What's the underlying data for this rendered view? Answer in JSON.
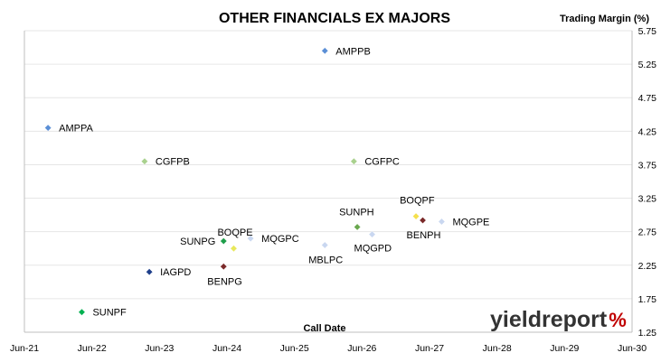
{
  "chart_data": {
    "type": "scatter",
    "title": "OTHER FINANCIALS EX MAJORS",
    "ylabel": "Trading Margin (%)",
    "xlabel": "Call Date",
    "x_ticks": [
      "Jun-21",
      "Jun-22",
      "Jun-23",
      "Jun-24",
      "Jun-25",
      "Jun-26",
      "Jun-27",
      "Jun-28",
      "Jun-29",
      "Jun-30"
    ],
    "y_ticks": [
      "1.25",
      "1.75",
      "2.25",
      "2.75",
      "3.25",
      "3.75",
      "4.25",
      "4.75",
      "5.25",
      "5.75"
    ],
    "xlim": [
      2021.5,
      2030.5
    ],
    "ylim": [
      1.25,
      5.75
    ],
    "y_axis_position": "right",
    "grid": "horizontal",
    "points": [
      {
        "name": "AMPPB",
        "x": 2025.95,
        "y": 5.45,
        "color": "#5b8fd6"
      },
      {
        "name": "AMPPA",
        "x": 2021.85,
        "y": 4.3,
        "color": "#5b8fd6"
      },
      {
        "name": "CGFPB",
        "x": 2023.28,
        "y": 3.8,
        "color": "#a9d18e"
      },
      {
        "name": "CGFPC",
        "x": 2026.38,
        "y": 3.8,
        "color": "#a9d18e"
      },
      {
        "name": "BOQPF",
        "x": 2027.3,
        "y": 2.98,
        "color": "#f4e04d"
      },
      {
        "name": "MQGPE",
        "x": 2027.68,
        "y": 2.9,
        "color": "#c9d7f0"
      },
      {
        "name": "BENPH",
        "x": 2027.4,
        "y": 2.92,
        "color": "#7b2a2a"
      },
      {
        "name": "SUNPH",
        "x": 2026.43,
        "y": 2.82,
        "color": "#6aa84f"
      },
      {
        "name": "MQGPD",
        "x": 2026.65,
        "y": 2.71,
        "color": "#c9d7f0"
      },
      {
        "name": "MBLPC",
        "x": 2025.95,
        "y": 2.55,
        "color": "#c9d7f0"
      },
      {
        "name": "MQGPC",
        "x": 2024.85,
        "y": 2.65,
        "color": "#c9d7f0"
      },
      {
        "name": "BOQPE",
        "x": 2024.6,
        "y": 2.5,
        "color": "#e8e85a"
      },
      {
        "name": "SUNPG",
        "x": 2024.45,
        "y": 2.61,
        "color": "#1e9e4a"
      },
      {
        "name": "BENPG",
        "x": 2024.45,
        "y": 2.23,
        "color": "#7b2a2a"
      },
      {
        "name": "IAGPD",
        "x": 2023.35,
        "y": 2.15,
        "color": "#1f3f8a"
      },
      {
        "name": "SUNPF",
        "x": 2022.35,
        "y": 1.55,
        "color": "#00b050"
      }
    ]
  },
  "logo": {
    "main": "yieldreport",
    "suffix": "%"
  },
  "colors": {
    "logo_text": "#333333",
    "logo_accent": "#c00000",
    "logo_green": "#3a9a3a"
  }
}
